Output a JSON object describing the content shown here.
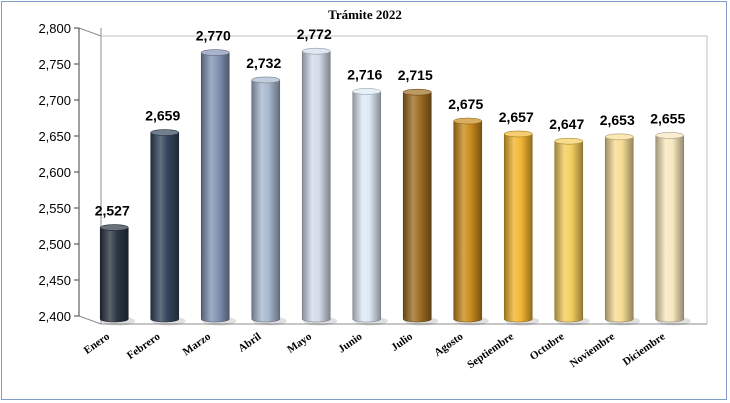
{
  "chart_data": {
    "type": "bar",
    "title": "Trámite 2022",
    "categories": [
      "Enero",
      "Febrero",
      "Marzo",
      "Abril",
      "Mayo",
      "Junio",
      "Julio",
      "Agosto",
      "Septiembre",
      "Octubre",
      "Noviembre",
      "Diciembre"
    ],
    "values": [
      2527,
      2659,
      2770,
      2732,
      2772,
      2716,
      2715,
      2675,
      2657,
      2647,
      2653,
      2655
    ],
    "data_labels": [
      "2,527",
      "2,659",
      "2,770",
      "2,732",
      "2,772",
      "2,716",
      "2,715",
      "2,675",
      "2,657",
      "2,647",
      "2,653",
      "2,655"
    ],
    "y_ticks": [
      "2,400",
      "2,450",
      "2,500",
      "2,550",
      "2,600",
      "2,650",
      "2,700",
      "2,750",
      "2,800"
    ],
    "ylim": [
      2400,
      2800
    ],
    "grid": false,
    "legend": "none",
    "bar_colors": [
      "#2c3644",
      "#34465c",
      "#8394b6",
      "#a8b8cf",
      "#d4dcea",
      "#dde9f6",
      "#9e6d23",
      "#c98b1c",
      "#f2b632",
      "#f5cd5e",
      "#f7dc94",
      "#f8e8be"
    ]
  }
}
